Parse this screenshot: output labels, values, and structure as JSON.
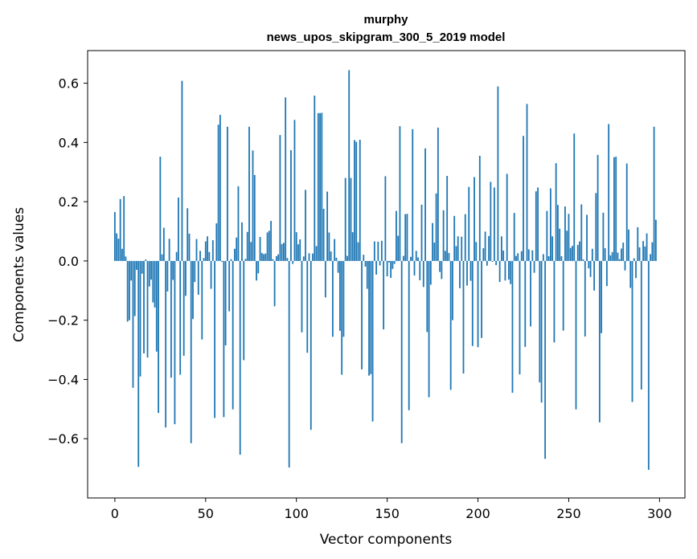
{
  "chart_data": {
    "type": "bar",
    "title": "murphy\nnews_upos_skipgram_300_5_2019 model",
    "title_lines": [
      "murphy",
      "news_upos_skipgram_300_5_2019 model"
    ],
    "xlabel": "Vector components",
    "ylabel": "Components values",
    "xlim": [
      -15,
      314
    ],
    "ylim": [
      -0.8,
      0.71
    ],
    "xticks": [
      0,
      50,
      100,
      150,
      200,
      250,
      300
    ],
    "yticks": [
      -0.6,
      -0.4,
      -0.2,
      0.0,
      0.2,
      0.4,
      0.6
    ],
    "xtick_labels": [
      "0",
      "50",
      "100",
      "150",
      "200",
      "250",
      "300"
    ],
    "ytick_labels": [
      "−0.6",
      "−0.4",
      "−0.2",
      "0.0",
      "0.2",
      "0.4",
      "0.6"
    ],
    "bar_color": "#1f77b4",
    "grid": false,
    "values": [
      0.165,
      0.093,
      0.075,
      0.209,
      0.041,
      0.219,
      0.015,
      -0.205,
      -0.2,
      -0.066,
      -0.428,
      -0.186,
      -0.03,
      -0.695,
      -0.39,
      -0.043,
      -0.312,
      0.005,
      -0.326,
      -0.086,
      -0.063,
      -0.14,
      -0.157,
      -0.306,
      -0.513,
      0.352,
      0.022,
      0.112,
      -0.562,
      -0.103,
      0.075,
      -0.394,
      -0.064,
      -0.551,
      0.03,
      0.214,
      -0.384,
      0.608,
      -0.32,
      -0.118,
      0.178,
      0.092,
      -0.615,
      -0.196,
      -0.071,
      0.074,
      -0.114,
      0.034,
      -0.265,
      0.01,
      0.066,
      0.083,
      0.03,
      -0.094,
      0.07,
      -0.53,
      0.127,
      0.46,
      0.493,
      -0.003,
      -0.527,
      -0.285,
      0.453,
      -0.17,
      0.006,
      -0.501,
      0.041,
      0.079,
      0.252,
      -0.654,
      0.13,
      -0.335,
      0.007,
      0.098,
      0.453,
      0.064,
      0.373,
      0.29,
      -0.066,
      -0.042,
      0.081,
      0.027,
      0.023,
      0.025,
      0.096,
      0.102,
      0.135,
      0.006,
      -0.153,
      0.016,
      0.022,
      0.425,
      0.057,
      0.061,
      0.552,
      0.01,
      -0.697,
      0.374,
      -0.01,
      0.476,
      0.097,
      0.056,
      0.073,
      -0.241,
      0.015,
      0.24,
      -0.31,
      0.026,
      -0.57,
      0.025,
      0.558,
      0.05,
      0.499,
      0.499,
      0.5,
      0.176,
      -0.123,
      0.234,
      0.096,
      0.032,
      -0.256,
      0.074,
      0.011,
      -0.04,
      -0.236,
      -0.384,
      -0.256,
      0.28,
      0.017,
      0.644,
      0.28,
      0.097,
      0.408,
      0.402,
      0.063,
      0.409,
      -0.366,
      0.021,
      -0.019,
      -0.094,
      -0.387,
      -0.382,
      -0.542,
      0.066,
      -0.046,
      0.065,
      -0.015,
      0.068,
      -0.231,
      0.286,
      -0.052,
      -0.005,
      -0.057,
      -0.027,
      -0.01,
      0.169,
      0.085,
      0.455,
      -0.615,
      0.017,
      0.158,
      0.159,
      -0.504,
      0.014,
      0.445,
      -0.049,
      0.034,
      0.012,
      -0.065,
      0.19,
      -0.088,
      0.38,
      -0.24,
      -0.46,
      -0.08,
      0.128,
      0.062,
      0.228,
      0.45,
      -0.037,
      -0.061,
      0.171,
      0.034,
      0.287,
      0.027,
      -0.435,
      -0.2,
      0.152,
      0.05,
      0.083,
      -0.092,
      0.082,
      -0.38,
      0.158,
      -0.083,
      0.25,
      -0.067,
      -0.287,
      0.283,
      0.064,
      -0.291,
      0.355,
      -0.26,
      0.043,
      0.099,
      -0.016,
      0.084,
      0.267,
      -0.003,
      0.248,
      -0.014,
      0.589,
      -0.071,
      0.083,
      0.035,
      -0.066,
      0.294,
      -0.063,
      -0.078,
      -0.445,
      0.162,
      0.017,
      0.026,
      -0.383,
      0.033,
      0.422,
      -0.29,
      0.53,
      0.039,
      -0.221,
      0.036,
      -0.04,
      0.235,
      0.248,
      -0.41,
      -0.478,
      0.023,
      -0.668,
      0.169,
      0.016,
      0.245,
      0.083,
      -0.275,
      0.33,
      0.189,
      0.109,
      0.016,
      -0.235,
      0.184,
      0.102,
      0.159,
      0.044,
      0.051,
      0.43,
      -0.501,
      0.054,
      0.066,
      0.191,
      0.005,
      -0.255,
      0.156,
      -0.025,
      -0.054,
      0.041,
      -0.1,
      0.229,
      0.358,
      -0.545,
      -0.244,
      0.163,
      0.043,
      -0.085,
      0.462,
      0.019,
      0.03,
      0.35,
      0.352,
      0.028,
      0.006,
      0.042,
      0.062,
      -0.032,
      0.329,
      0.106,
      -0.091,
      -0.476,
      0.009,
      -0.058,
      0.114,
      0.046,
      -0.434,
      0.067,
      0.049,
      0.093,
      -0.705,
      0.023,
      0.063,
      0.453,
      0.139
    ]
  }
}
